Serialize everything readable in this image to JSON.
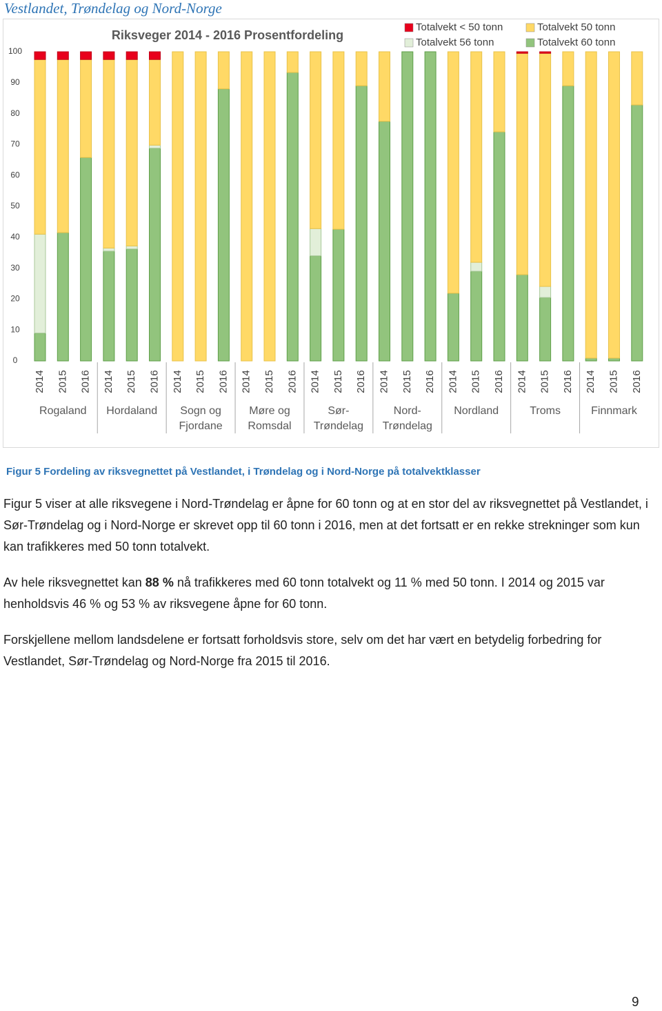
{
  "header": "Vestlandet, Trøndelag og Nord-Norge",
  "chart_data": {
    "type": "stacked-bar",
    "title": "Riksveger 2014 - 2016 Prosentfordeling",
    "categories": [
      "2014",
      "2015",
      "2016",
      "2014",
      "2015",
      "2016",
      "2014",
      "2015",
      "2016",
      "2014",
      "2015",
      "2016",
      "2014",
      "2015",
      "2016",
      "2014",
      "2015",
      "2016",
      "2014",
      "2015",
      "2016",
      "2014",
      "2015",
      "2016",
      "2014",
      "2015",
      "2016"
    ],
    "groups": [
      "Rogaland",
      "Hordaland",
      "Sogn og Fjordane",
      "Møre og Romsdal",
      "Sør-Trøndelag",
      "Nord-Trøndelag",
      "Nordland",
      "Troms",
      "Finnmark"
    ],
    "series": [
      {
        "name": "Totalvekt 60 tonn",
        "color": "#92c47d",
        "values": [
          9,
          41.5,
          65.8,
          35.5,
          36.2,
          68.8,
          0,
          0,
          88,
          0,
          0,
          93.3,
          34,
          42.6,
          89,
          77.5,
          100,
          100,
          21.9,
          29,
          74.1,
          27.9,
          20.5,
          89,
          0.9,
          0.9,
          82.8
        ]
      },
      {
        "name": "Totalvekt 56 tonn",
        "color": "#e2efd9",
        "values": [
          32,
          0,
          0,
          1,
          1,
          1,
          0,
          0,
          0,
          0,
          0,
          0,
          8.8,
          0,
          0,
          0,
          0,
          0,
          0,
          2.9,
          0,
          0,
          3.6,
          0,
          0,
          0,
          0
        ]
      },
      {
        "name": "Totalvekt 50 tonn",
        "color": "#ffd966",
        "values": [
          56.5,
          56,
          31.7,
          61,
          60.3,
          27.7,
          100,
          100,
          12,
          100,
          100,
          6.7,
          57.2,
          57.4,
          11,
          22.5,
          0,
          0,
          78.1,
          68.1,
          25.9,
          71.6,
          75.4,
          11,
          99.1,
          99.1,
          17.2
        ]
      },
      {
        "name": "Totalvekt < 50 tonn",
        "color": "#e8001c",
        "values": [
          2.5,
          2.5,
          2.5,
          2.5,
          2.5,
          2.5,
          0,
          0,
          0,
          0,
          0,
          0,
          0,
          0,
          0,
          0,
          0,
          0,
          0,
          0,
          0,
          0.5,
          0.5,
          0,
          0,
          0,
          0
        ]
      }
    ],
    "ylim": [
      0,
      100
    ],
    "yticks": [
      0,
      10,
      20,
      30,
      40,
      50,
      60,
      70,
      80,
      90,
      100
    ]
  },
  "caption": "Figur 5 Fordeling av riksvegnettet på Vestlandet, i Trøndelag og i Nord-Norge på totalvektklasser",
  "paragraphs": [
    [
      "Figur 5 viser at alle riksvegene i Nord-Trøndelag er åpne for 60 tonn og at en stor del av riksvegnettet på Vestlandet, i Sør-Trøndelag og i Nord-Norge er skrevet opp til 60 tonn i 2016, men at det fortsatt er en rekke strekninger som kun kan trafikkeres med 50 tonn totalvekt."
    ],
    [
      "Av hele riksvegnettet kan ",
      "88 %",
      " nå trafikkeres med 60 tonn totalvekt og 11 % med 50 tonn. I 2014 og 2015 var henholdsvis 46 % og 53 % av riksvegene åpne for 60 tonn."
    ],
    [
      "Forskjellene mellom landsdelene er fortsatt forholdsvis store, selv om det har vært en betydelig forbedring for Vestlandet, Sør-Trøndelag og Nord-Norge fra 2015 til 2016."
    ]
  ],
  "page_number": "9"
}
